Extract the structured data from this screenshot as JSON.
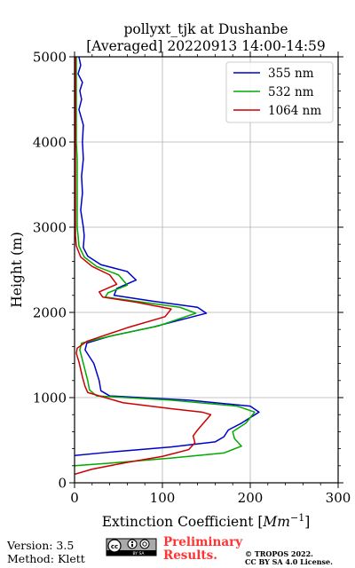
{
  "chart_data": {
    "type": "line",
    "title": "pollyxt_tjk at Dushanbe",
    "subtitle": "[Averaged] 20220913 14:00-14:59",
    "xlabel": "Extinction Coefficient [Mm⁻¹]",
    "xlabel_main": "Extinction Coefficient [",
    "xlabel_unit": "Mm",
    "xlabel_exp": "−1",
    "xlabel_close": "]",
    "ylabel": "Height (m)",
    "xlim": [
      0,
      300
    ],
    "ylim": [
      0,
      5000
    ],
    "xticks": [
      0,
      100,
      200,
      300
    ],
    "yticks": [
      0,
      1000,
      2000,
      3000,
      4000,
      5000
    ],
    "x_minor_step": 20,
    "y_minor_step": 200,
    "grid": true,
    "legend_position": "top-right",
    "series": [
      {
        "name": "355 nm",
        "color": "#0000cc",
        "points": [
          [
            0,
            320
          ],
          [
            40,
            360
          ],
          [
            110,
            420
          ],
          [
            160,
            480
          ],
          [
            170,
            540
          ],
          [
            175,
            620
          ],
          [
            190,
            700
          ],
          [
            210,
            830
          ],
          [
            200,
            900
          ],
          [
            130,
            970
          ],
          [
            40,
            1020
          ],
          [
            30,
            1080
          ],
          [
            28,
            1200
          ],
          [
            22,
            1400
          ],
          [
            12,
            1560
          ],
          [
            14,
            1640
          ],
          [
            40,
            1720
          ],
          [
            90,
            1830
          ],
          [
            150,
            1990
          ],
          [
            140,
            2060
          ],
          [
            90,
            2130
          ],
          [
            45,
            2200
          ],
          [
            48,
            2280
          ],
          [
            70,
            2380
          ],
          [
            60,
            2480
          ],
          [
            30,
            2560
          ],
          [
            15,
            2660
          ],
          [
            10,
            2760
          ],
          [
            11,
            2900
          ],
          [
            10,
            3000
          ],
          [
            7,
            3200
          ],
          [
            9,
            3400
          ],
          [
            8,
            3600
          ],
          [
            10,
            3800
          ],
          [
            9,
            4000
          ],
          [
            10,
            4200
          ],
          [
            5,
            4380
          ],
          [
            8,
            4500
          ],
          [
            6,
            4600
          ],
          [
            9,
            4700
          ],
          [
            4,
            4800
          ],
          [
            7,
            4900
          ],
          [
            5,
            5000
          ]
        ]
      },
      {
        "name": "532 nm",
        "color": "#00aa00",
        "points": [
          [
            0,
            200
          ],
          [
            40,
            230
          ],
          [
            110,
            290
          ],
          [
            170,
            350
          ],
          [
            190,
            430
          ],
          [
            182,
            520
          ],
          [
            180,
            600
          ],
          [
            195,
            700
          ],
          [
            205,
            830
          ],
          [
            185,
            900
          ],
          [
            110,
            970
          ],
          [
            25,
            1020
          ],
          [
            17,
            1090
          ],
          [
            15,
            1200
          ],
          [
            10,
            1400
          ],
          [
            6,
            1560
          ],
          [
            8,
            1640
          ],
          [
            40,
            1720
          ],
          [
            95,
            1840
          ],
          [
            138,
            1990
          ],
          [
            120,
            2060
          ],
          [
            70,
            2130
          ],
          [
            35,
            2180
          ],
          [
            38,
            2230
          ],
          [
            60,
            2320
          ],
          [
            50,
            2440
          ],
          [
            25,
            2540
          ],
          [
            11,
            2650
          ],
          [
            5,
            2780
          ],
          [
            4,
            2900
          ],
          [
            3,
            3000
          ],
          [
            3,
            3200
          ],
          [
            3,
            3500
          ],
          [
            3,
            3800
          ],
          [
            2,
            4000
          ],
          [
            2,
            4300
          ],
          [
            2,
            4600
          ],
          [
            2,
            5000
          ]
        ]
      },
      {
        "name": "1064 nm",
        "color": "#cc0000",
        "points": [
          [
            0,
            100
          ],
          [
            20,
            160
          ],
          [
            60,
            240
          ],
          [
            100,
            310
          ],
          [
            130,
            390
          ],
          [
            137,
            470
          ],
          [
            135,
            550
          ],
          [
            140,
            620
          ],
          [
            155,
            800
          ],
          [
            145,
            830
          ],
          [
            110,
            870
          ],
          [
            55,
            940
          ],
          [
            15,
            1060
          ],
          [
            12,
            1130
          ],
          [
            9,
            1240
          ],
          [
            5,
            1420
          ],
          [
            2,
            1520
          ],
          [
            3,
            1580
          ],
          [
            14,
            1660
          ],
          [
            60,
            1820
          ],
          [
            103,
            1950
          ],
          [
            110,
            2040
          ],
          [
            70,
            2120
          ],
          [
            32,
            2180
          ],
          [
            28,
            2240
          ],
          [
            48,
            2330
          ],
          [
            40,
            2440
          ],
          [
            20,
            2540
          ],
          [
            7,
            2650
          ],
          [
            2,
            2780
          ],
          [
            1,
            2900
          ],
          [
            1,
            3200
          ],
          [
            1,
            3600
          ],
          [
            1,
            4000
          ],
          [
            1,
            4500
          ],
          [
            1,
            5000
          ]
        ]
      }
    ]
  },
  "footer": {
    "version": "Version: 3.5",
    "method": "Method: Klett",
    "preliminary_line1": "Preliminary",
    "preliminary_line2": "Results.",
    "copyright_line1": "© TROPOS 2022.",
    "copyright_line2": "CC BY SA 4.0 License.",
    "license_badge_text": "BY SA",
    "accent_color": "#ff3333"
  }
}
